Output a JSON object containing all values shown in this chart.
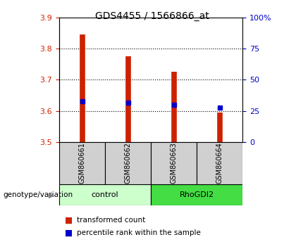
{
  "title": "GDS4455 / 1566866_at",
  "samples": [
    "GSM860661",
    "GSM860662",
    "GSM860663",
    "GSM860664"
  ],
  "bar_bottoms": [
    3.5,
    3.5,
    3.5,
    3.5
  ],
  "bar_tops": [
    3.845,
    3.775,
    3.725,
    3.595
  ],
  "blue_markers": [
    3.63,
    3.625,
    3.62,
    3.61
  ],
  "ylim": [
    3.5,
    3.9
  ],
  "yticks_left": [
    3.5,
    3.6,
    3.7,
    3.8,
    3.9
  ],
  "yticks_right": [
    0,
    25,
    50,
    75,
    100
  ],
  "ytick_labels_right": [
    "0",
    "25",
    "50",
    "75",
    "100%"
  ],
  "bar_color": "#cc2200",
  "blue_color": "#0000cc",
  "groups": [
    {
      "label": "control",
      "samples": [
        0,
        1
      ],
      "color": "#ccffcc"
    },
    {
      "label": "RhoGDI2",
      "samples": [
        2,
        3
      ],
      "color": "#44dd44"
    }
  ],
  "group_label": "genotype/variation",
  "legend_red": "transformed count",
  "legend_blue": "percentile rank within the sample",
  "sample_bg_color": "#d0d0d0",
  "plot_bg_color": "#ffffff",
  "left_tick_color": "#cc2200",
  "right_tick_color": "#0000cc"
}
